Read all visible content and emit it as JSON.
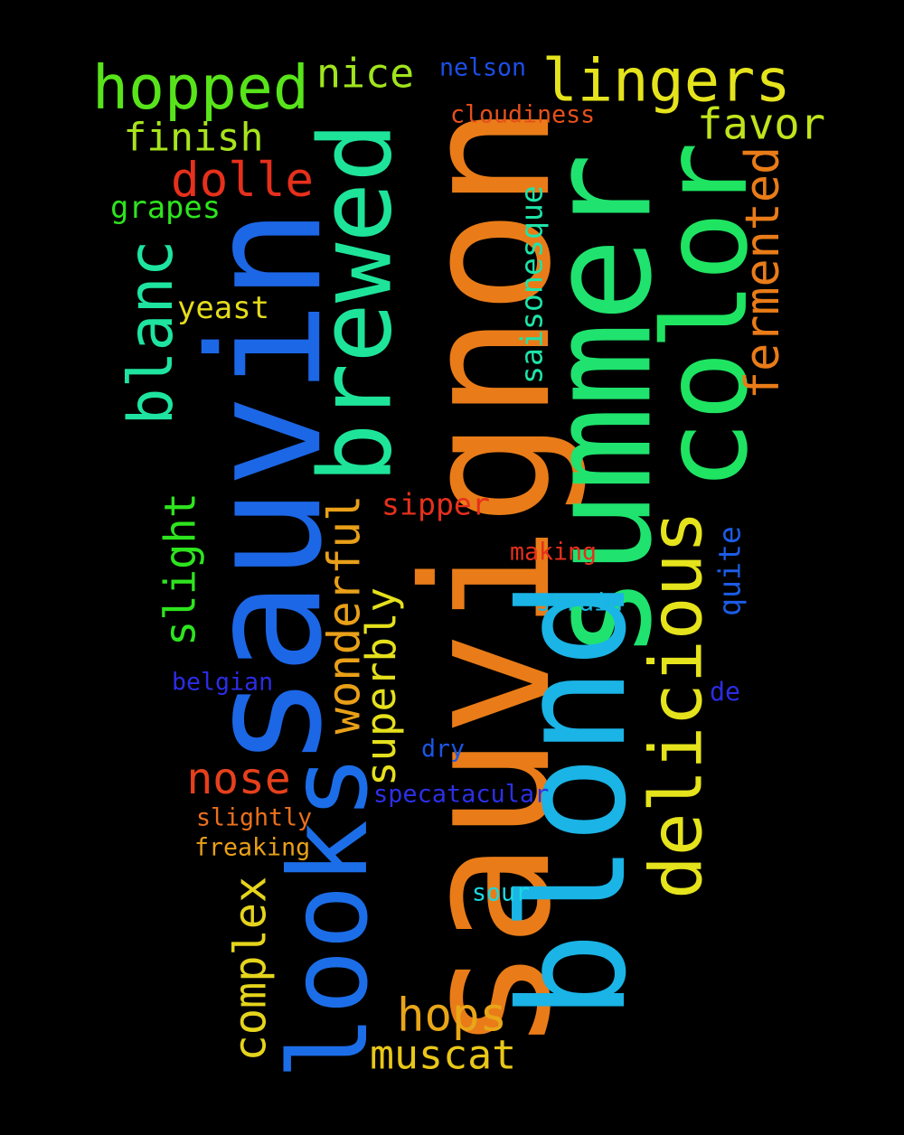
{
  "words": [
    {
      "text": "sauvignon",
      "color": "#e97c18",
      "rotated": true
    },
    {
      "text": "sauvin",
      "color": "#1c67e6",
      "rotated": true
    },
    {
      "text": "summer",
      "color": "#1fe36e",
      "rotated": true
    },
    {
      "text": "blond",
      "color": "#1ab4e6",
      "rotated": true
    },
    {
      "text": "color",
      "color": "#1ee462",
      "rotated": true
    },
    {
      "text": "brewed",
      "color": "#1ee49a",
      "rotated": true
    },
    {
      "text": "looks",
      "color": "#1c6ee8",
      "rotated": true
    },
    {
      "text": "delicious",
      "color": "#e5e31c",
      "rotated": true
    },
    {
      "text": "hopped",
      "color": "#58e41a",
      "rotated": false
    },
    {
      "text": "lingers",
      "color": "#e5e31c",
      "rotated": false
    },
    {
      "text": "blanc",
      "color": "#1ee4a0",
      "rotated": true
    },
    {
      "text": "fermented",
      "color": "#e97c18",
      "rotated": true
    },
    {
      "text": "dolle",
      "color": "#e6301c",
      "rotated": false
    },
    {
      "text": "finish",
      "color": "#a8e41c",
      "rotated": false
    },
    {
      "text": "favor",
      "color": "#c0e41c",
      "rotated": false
    },
    {
      "text": "nice",
      "color": "#a0e41c",
      "rotated": false
    },
    {
      "text": "slight",
      "color": "#2ee41e",
      "rotated": true
    },
    {
      "text": "wonderful",
      "color": "#e9a018",
      "rotated": true
    },
    {
      "text": "complex",
      "color": "#e5d41c",
      "rotated": true
    },
    {
      "text": "nose",
      "color": "#e6401c",
      "rotated": false
    },
    {
      "text": "hops",
      "color": "#e9a618",
      "rotated": false
    },
    {
      "text": "muscat",
      "color": "#e9c718",
      "rotated": false
    },
    {
      "text": "superbly",
      "color": "#e5e01c",
      "rotated": true
    },
    {
      "text": "saisonesque",
      "color": "#1ee4a8",
      "rotated": true
    },
    {
      "text": "quite",
      "color": "#1c5ce6",
      "rotated": true
    },
    {
      "text": "yeast",
      "color": "#e5dc1c",
      "rotated": false
    },
    {
      "text": "grapes",
      "color": "#2ee41e",
      "rotated": false
    },
    {
      "text": "sipper",
      "color": "#e6301c",
      "rotated": false
    },
    {
      "text": "making",
      "color": "#e6301c",
      "rotated": false
    },
    {
      "text": "strain",
      "color": "#1ab8e0",
      "rotated": false
    },
    {
      "text": "nelson",
      "color": "#1c4ee6",
      "rotated": false
    },
    {
      "text": "cloudiness",
      "color": "#e6501c",
      "rotated": false
    },
    {
      "text": "belgian",
      "color": "#2c2ce6",
      "rotated": false
    },
    {
      "text": "de",
      "color": "#2c2ce6",
      "rotated": false
    },
    {
      "text": "dry",
      "color": "#1c56e6",
      "rotated": false
    },
    {
      "text": "specatacular",
      "color": "#2c30e6",
      "rotated": false
    },
    {
      "text": "slightly",
      "color": "#e9701c",
      "rotated": false
    },
    {
      "text": "freaking",
      "color": "#e9a018",
      "rotated": false
    },
    {
      "text": "sour",
      "color": "#1ad8e0",
      "rotated": false
    }
  ]
}
